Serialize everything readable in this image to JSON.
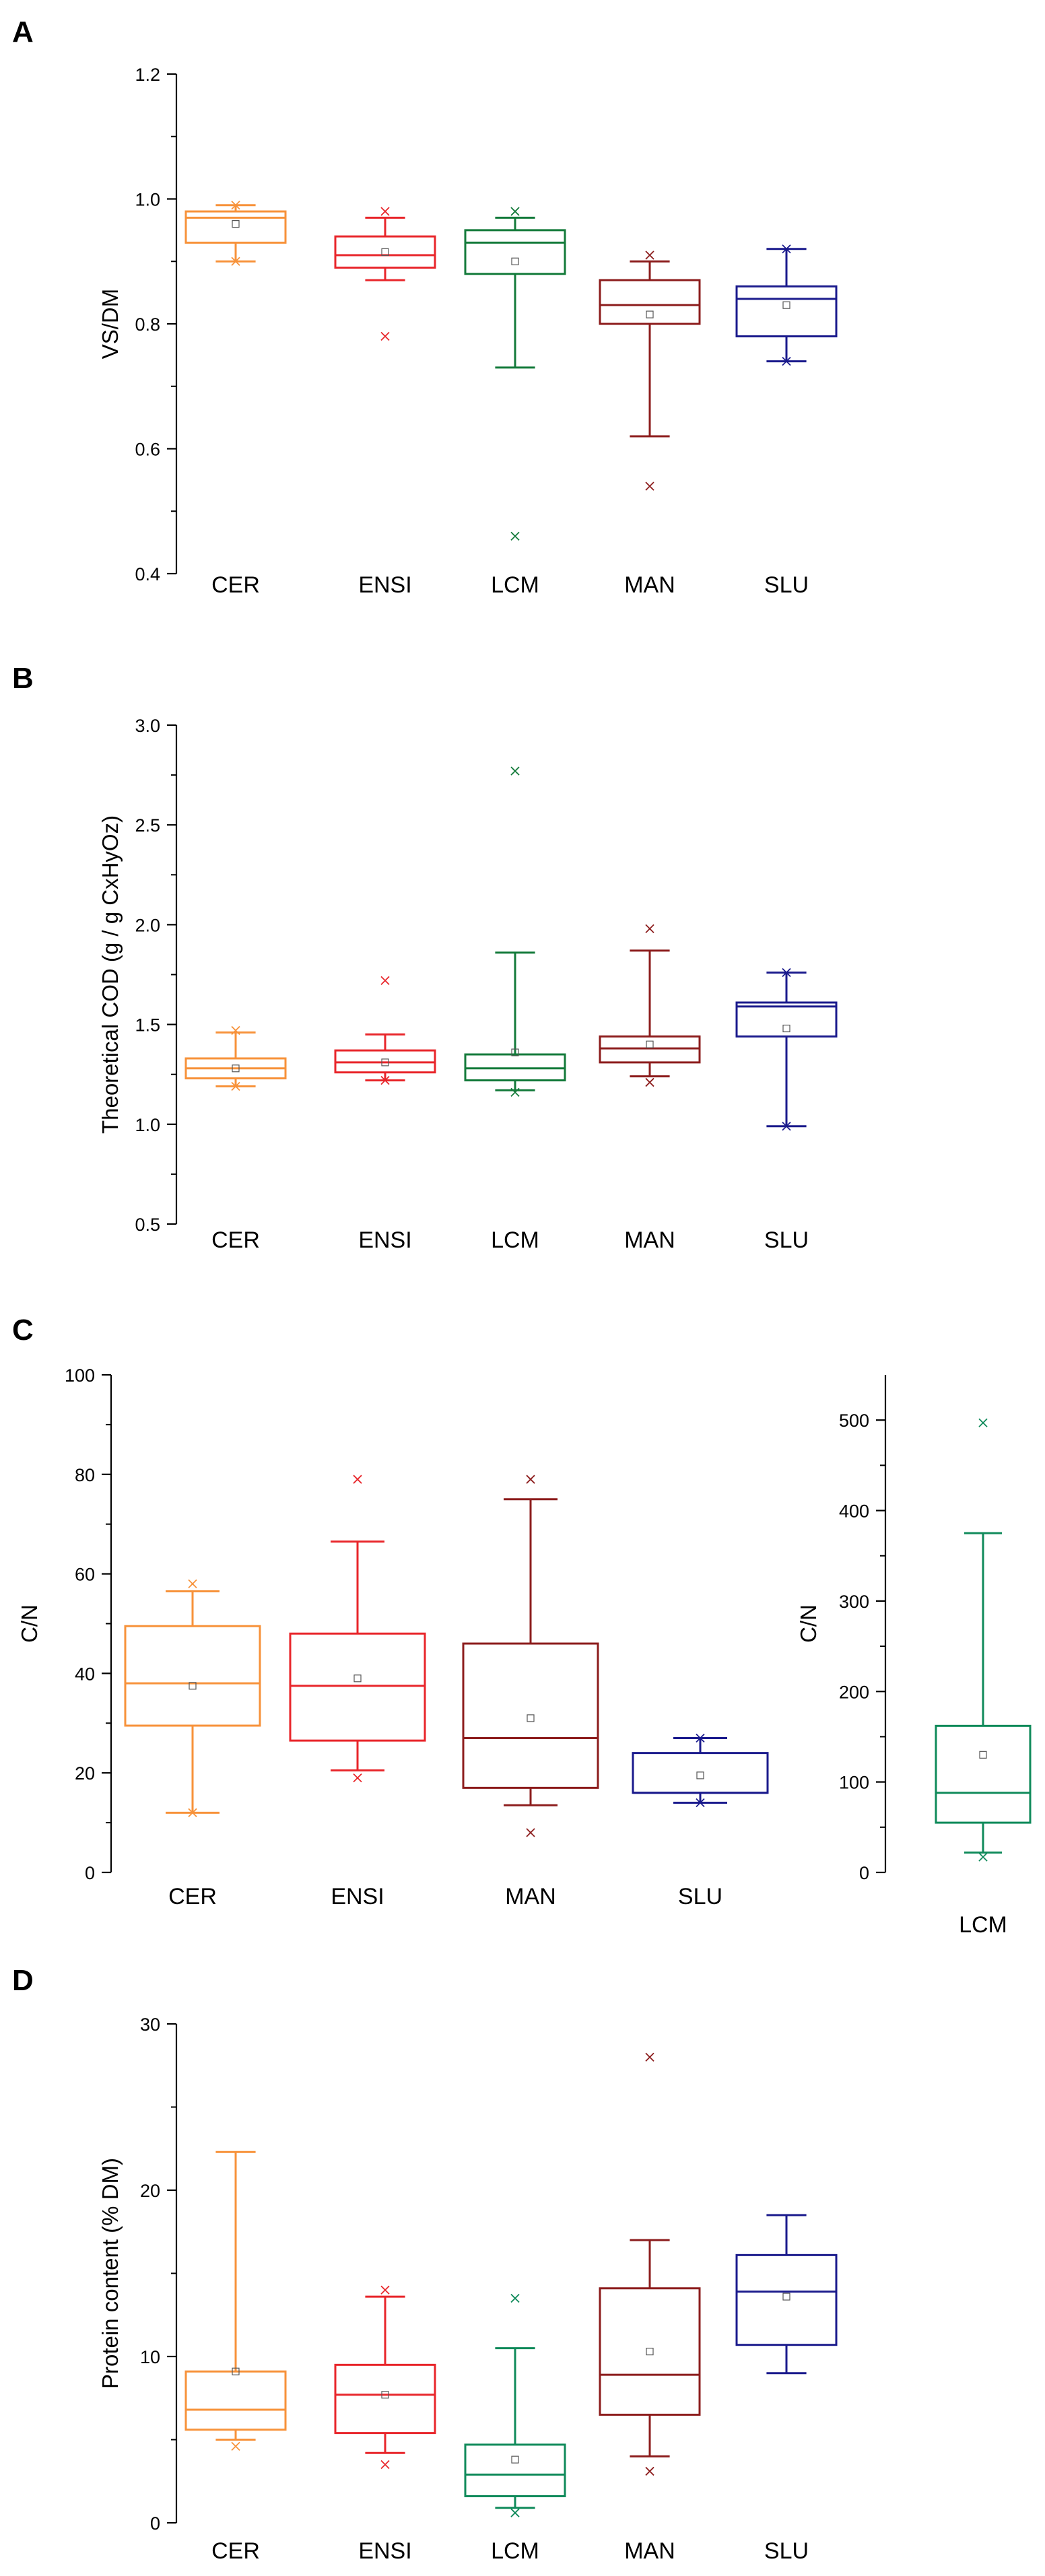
{
  "chart_data": [
    {
      "type": "box",
      "panel_label": "A",
      "title": "",
      "ylabel": "VS/DM",
      "xlabel": "",
      "ylim": [
        0.4,
        1.2
      ],
      "yticks": [
        "0.4",
        "0.6",
        "0.8",
        "1.0",
        "1.2"
      ],
      "categories": [
        "CER",
        "ENSI",
        "LCM",
        "MAN",
        "SLU"
      ],
      "colors": [
        "#f7923a",
        "#e8252a",
        "#137a3a",
        "#8c1c1c",
        "#1a1a8c"
      ],
      "boxes": [
        {
          "whislo": 0.9,
          "q1": 0.93,
          "med": 0.97,
          "q3": 0.98,
          "whishi": 0.99,
          "mean": 0.96,
          "outliers": [
            0.99,
            0.9
          ]
        },
        {
          "whislo": 0.87,
          "q1": 0.89,
          "med": 0.91,
          "q3": 0.94,
          "whishi": 0.97,
          "mean": 0.915,
          "outliers": [
            0.98,
            0.78
          ]
        },
        {
          "whislo": 0.73,
          "q1": 0.88,
          "med": 0.93,
          "q3": 0.95,
          "whishi": 0.97,
          "mean": 0.9,
          "outliers": [
            0.98,
            0.46
          ]
        },
        {
          "whislo": 0.62,
          "q1": 0.8,
          "med": 0.83,
          "q3": 0.87,
          "whishi": 0.9,
          "mean": 0.815,
          "outliers": [
            0.91,
            0.54
          ]
        },
        {
          "whislo": 0.74,
          "q1": 0.78,
          "med": 0.84,
          "q3": 0.86,
          "whishi": 0.92,
          "mean": 0.83,
          "outliers": [
            0.92,
            0.74
          ]
        }
      ]
    },
    {
      "type": "box",
      "panel_label": "B",
      "title": "",
      "ylabel": "Theoretical COD (g / g CxHyOz)",
      "xlabel": "",
      "ylim": [
        0.5,
        3.0
      ],
      "yticks": [
        "0.5",
        "1.0",
        "1.5",
        "2.0",
        "2.5",
        "3.0"
      ],
      "categories": [
        "CER",
        "ENSI",
        "LCM",
        "MAN",
        "SLU"
      ],
      "colors": [
        "#f7923a",
        "#e8252a",
        "#137a3a",
        "#8c1c1c",
        "#1a1a8c"
      ],
      "boxes": [
        {
          "whislo": 1.19,
          "q1": 1.23,
          "med": 1.28,
          "q3": 1.33,
          "whishi": 1.46,
          "mean": 1.28,
          "outliers": [
            1.47,
            1.19
          ]
        },
        {
          "whislo": 1.22,
          "q1": 1.26,
          "med": 1.31,
          "q3": 1.37,
          "whishi": 1.45,
          "mean": 1.31,
          "outliers": [
            1.72,
            1.22
          ]
        },
        {
          "whislo": 1.17,
          "q1": 1.22,
          "med": 1.28,
          "q3": 1.35,
          "whishi": 1.86,
          "mean": 1.36,
          "outliers": [
            2.77,
            1.16
          ]
        },
        {
          "whislo": 1.24,
          "q1": 1.31,
          "med": 1.38,
          "q3": 1.44,
          "whishi": 1.87,
          "mean": 1.4,
          "outliers": [
            1.98,
            1.21
          ]
        },
        {
          "whislo": 0.99,
          "q1": 1.44,
          "med": 1.59,
          "q3": 1.61,
          "whishi": 1.76,
          "mean": 1.48,
          "outliers": [
            1.76,
            0.99
          ]
        }
      ]
    },
    {
      "type": "box",
      "panel_label": "C",
      "title": "",
      "ylabel": "C/N",
      "xlabel": "",
      "ylim": [
        0,
        100
      ],
      "yticks": [
        "0",
        "20",
        "40",
        "60",
        "80",
        "100"
      ],
      "categories": [
        "CER",
        "ENSI",
        "MAN",
        "SLU"
      ],
      "colors": [
        "#f7923a",
        "#e8252a",
        "#8c1c1c",
        "#1a1a8c"
      ],
      "boxes": [
        {
          "whislo": 12,
          "q1": 29.5,
          "med": 38,
          "q3": 49.5,
          "whishi": 56.5,
          "mean": 37.5,
          "outliers": [
            58,
            12
          ]
        },
        {
          "whislo": 20.5,
          "q1": 26.5,
          "med": 37.5,
          "q3": 48,
          "whishi": 66.5,
          "mean": 39,
          "outliers": [
            79,
            19
          ]
        },
        {
          "whislo": 13.5,
          "q1": 17,
          "med": 27,
          "q3": 46,
          "whishi": 75,
          "mean": 31,
          "outliers": [
            79,
            8
          ]
        },
        {
          "whislo": 14,
          "q1": 16,
          "med": 16,
          "q3": 24,
          "whishi": 27,
          "mean": 19.5,
          "outliers": [
            27,
            14
          ]
        }
      ]
    },
    {
      "type": "box",
      "panel_label": "",
      "title": "",
      "ylabel": "C/N",
      "xlabel": "",
      "ylim": [
        0,
        550
      ],
      "yticks": [
        "0",
        "100",
        "200",
        "300",
        "400",
        "500"
      ],
      "categories": [
        "LCM"
      ],
      "colors": [
        "#0f8a5a"
      ],
      "boxes": [
        {
          "whislo": 22,
          "q1": 55,
          "med": 88,
          "q3": 162,
          "whishi": 375,
          "mean": 130,
          "outliers": [
            497,
            17
          ]
        }
      ]
    },
    {
      "type": "box",
      "panel_label": "D",
      "title": "",
      "ylabel": "Protein content (% DM)",
      "xlabel": "",
      "ylim": [
        0,
        30
      ],
      "yticks": [
        "0",
        "10",
        "20",
        "30"
      ],
      "categories": [
        "CER",
        "ENSI",
        "LCM",
        "MAN",
        "SLU"
      ],
      "colors": [
        "#f7923a",
        "#e8252a",
        "#0f8a5a",
        "#8c1c1c",
        "#1a1a8c"
      ],
      "boxes": [
        {
          "whislo": 5,
          "q1": 5.6,
          "med": 6.8,
          "q3": 9.1,
          "whishi": 22.3,
          "mean": 9.1,
          "outliers": [
            4.6
          ]
        },
        {
          "whislo": 4.2,
          "q1": 5.4,
          "med": 7.7,
          "q3": 9.5,
          "whishi": 13.6,
          "mean": 7.7,
          "outliers": [
            14,
            3.5
          ]
        },
        {
          "whislo": 0.9,
          "q1": 1.6,
          "med": 2.9,
          "q3": 4.7,
          "whishi": 10.5,
          "mean": 3.8,
          "outliers": [
            13.5,
            0.6
          ]
        },
        {
          "whislo": 4,
          "q1": 6.5,
          "med": 8.9,
          "q3": 14.1,
          "whishi": 17,
          "mean": 10.3,
          "outliers": [
            28,
            3.1
          ]
        },
        {
          "whislo": 9,
          "q1": 10.7,
          "med": 13.9,
          "q3": 16.1,
          "whishi": 18.5,
          "mean": 13.6,
          "outliers": []
        }
      ]
    }
  ]
}
